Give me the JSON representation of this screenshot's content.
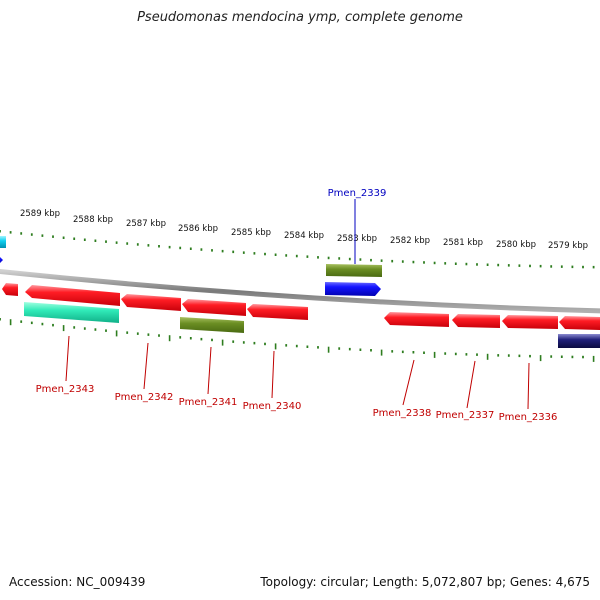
{
  "title": "Pseudomonas mendocina ymp, complete genome",
  "footer": {
    "accession": "Accession: NC_009439",
    "summary": "Topology: circular; Length: 5,072,807 bp; Genes: 4,675"
  },
  "colors": {
    "backbone": "#8a8a8a",
    "tick": "#2e7d1f",
    "gene_red": "#e8141c",
    "gene_olive": "#6b8e23",
    "gene_blue": "#1010e0",
    "gene_navy": "#10106a",
    "gene_aqua": "#28e8b0",
    "gene_cyan": "#00c8e8",
    "label_red": "#c00000",
    "label_blue": "#0000c0"
  },
  "scale_labels": [
    "2589 kbp",
    "2588 kbp",
    "2587 kbp",
    "2586 kbp",
    "2585 kbp",
    "2584 kbp",
    "2583 kbp",
    "2582 kbp",
    "2581 kbp",
    "2580 kbp",
    "2579 kbp"
  ],
  "gene_labels": [
    {
      "name": "Pmen_2339",
      "strand": "plus"
    },
    {
      "name": "Pmen_2343",
      "strand": "minus"
    },
    {
      "name": "Pmen_2342",
      "strand": "minus"
    },
    {
      "name": "Pmen_2341",
      "strand": "minus"
    },
    {
      "name": "Pmen_2340",
      "strand": "minus"
    },
    {
      "name": "Pmen_2338",
      "strand": "minus"
    },
    {
      "name": "Pmen_2337",
      "strand": "minus"
    },
    {
      "name": "Pmen_2336",
      "strand": "minus"
    }
  ]
}
